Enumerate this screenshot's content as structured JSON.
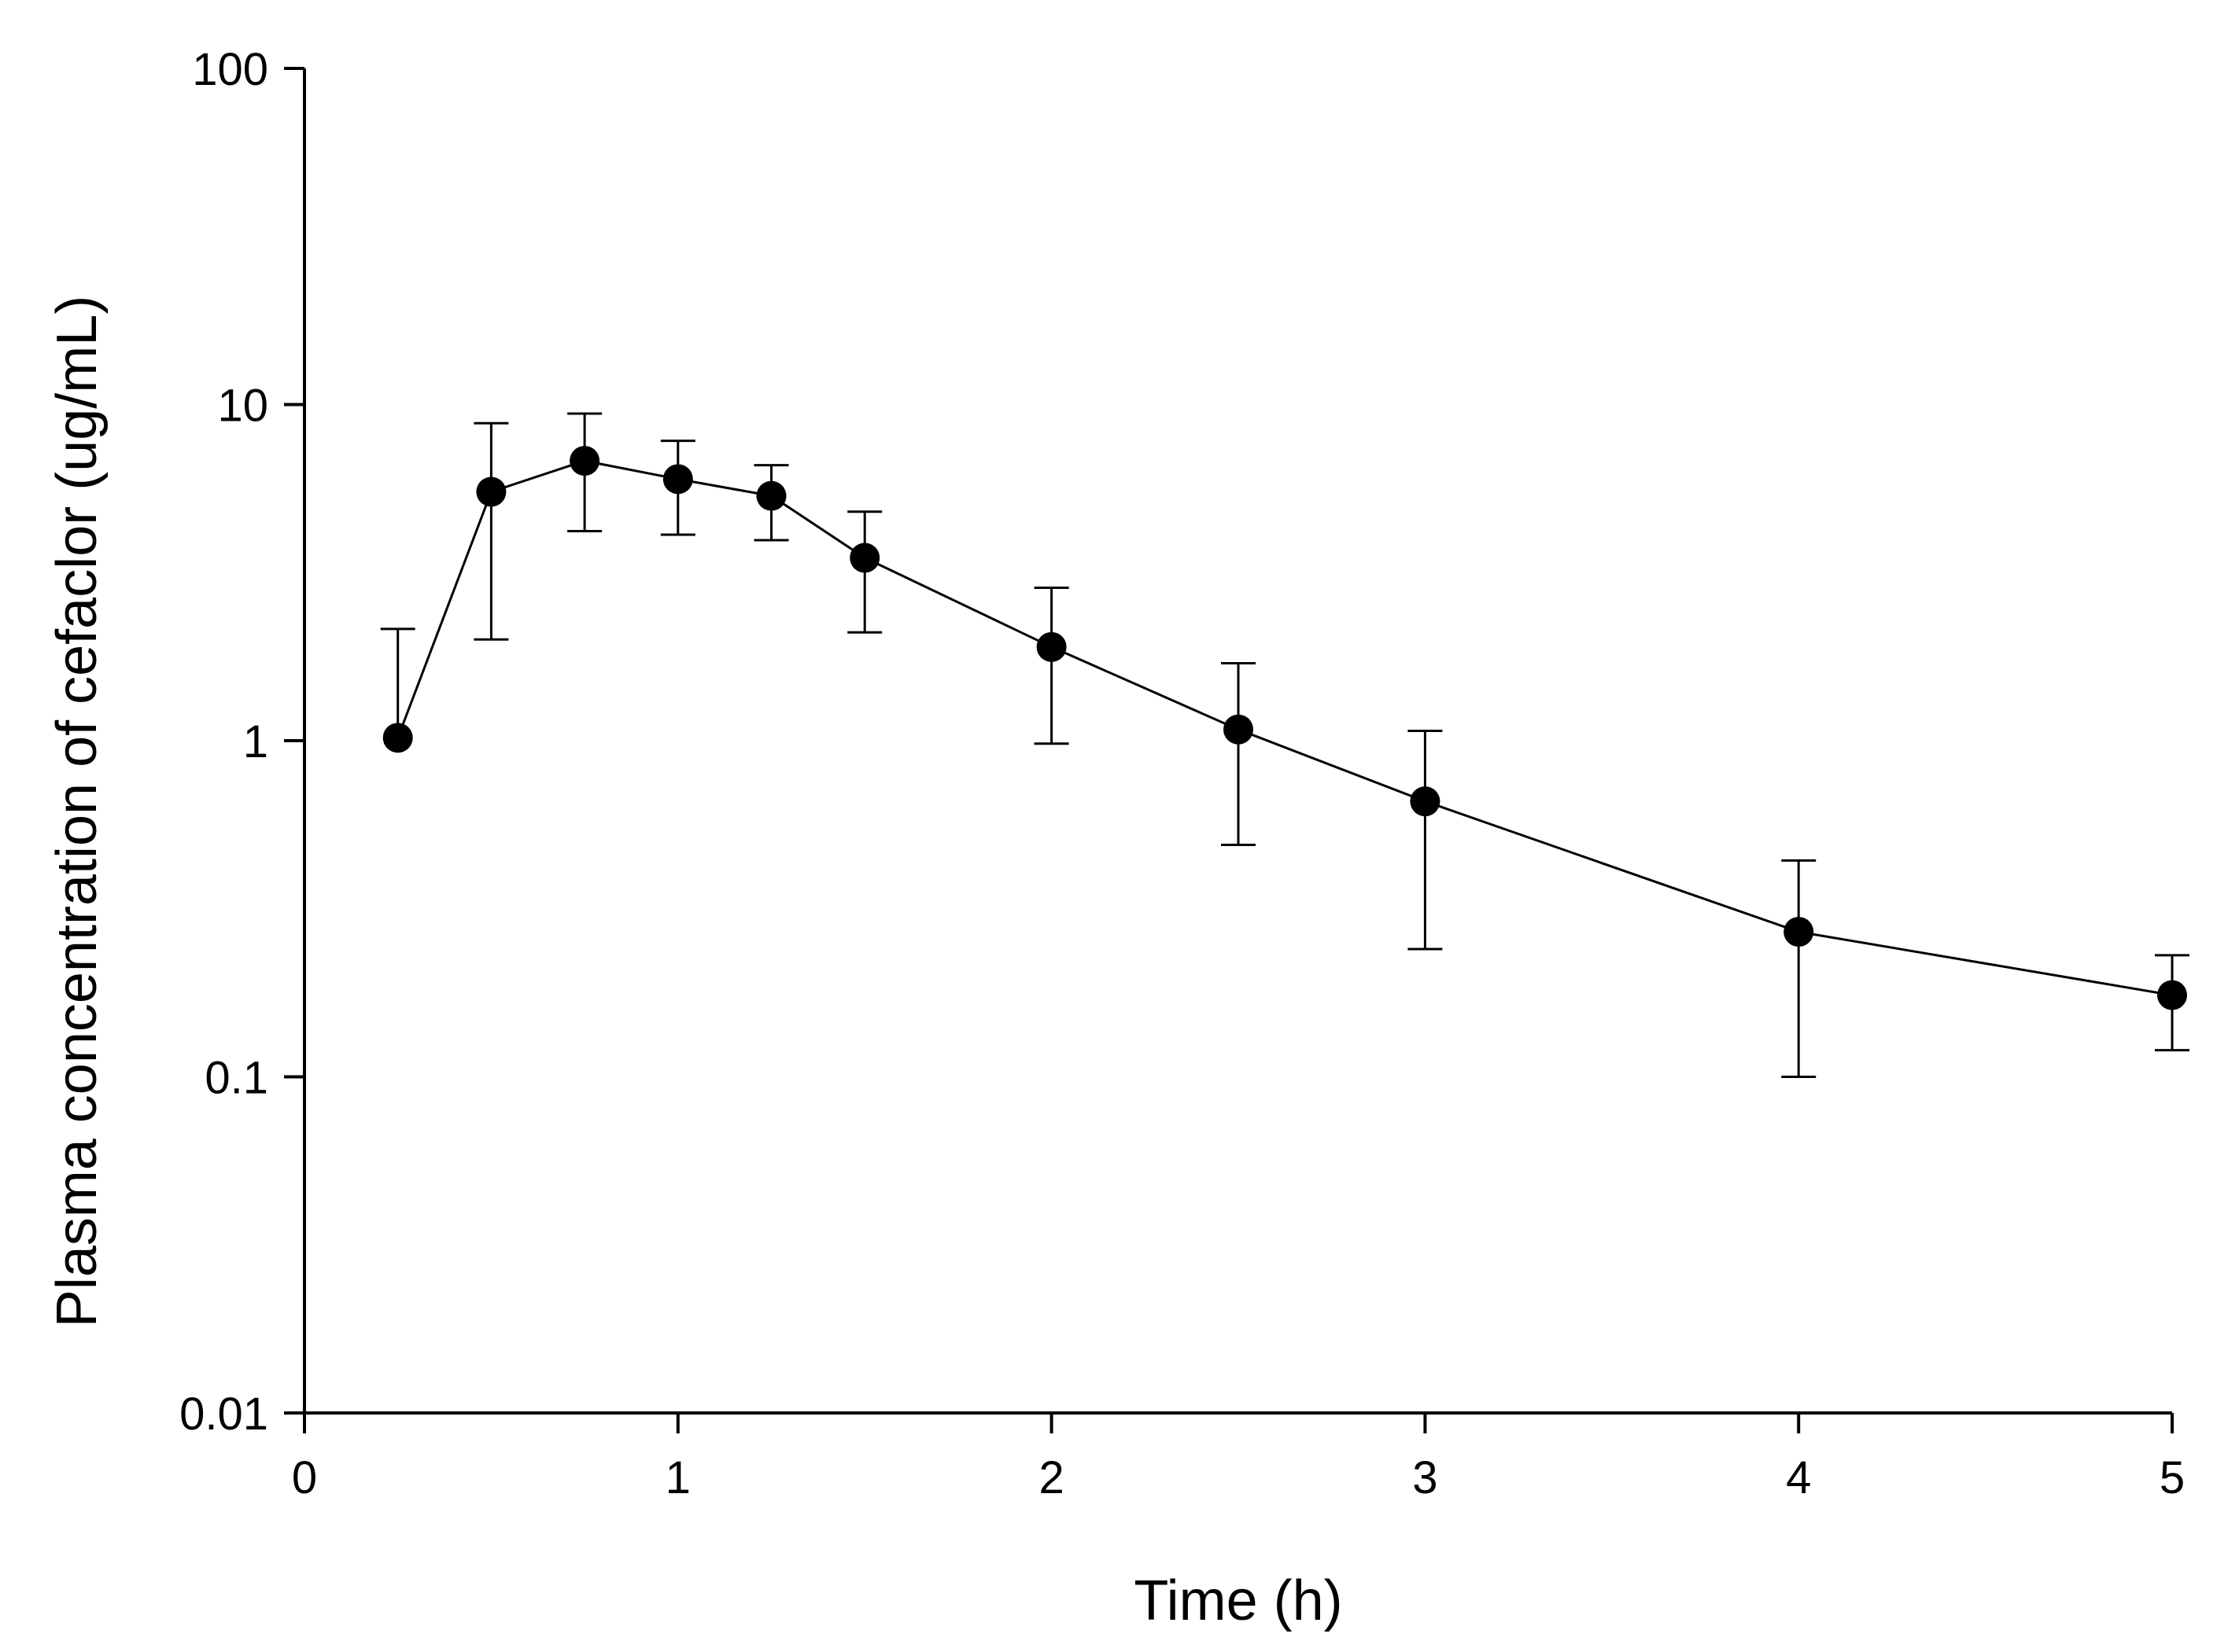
{
  "chart_data": {
    "type": "line",
    "title": "",
    "xlabel": "Time (h)",
    "ylabel": "Plasma concentration of cefaclor (ug/mL)",
    "xlim": [
      0,
      5
    ],
    "ylim": [
      0.01,
      100
    ],
    "yscale": "log",
    "x_ticks": [
      0,
      1,
      2,
      3,
      4,
      5
    ],
    "x_tick_labels": [
      "0",
      "1",
      "2",
      "3",
      "4",
      "5"
    ],
    "y_ticks": [
      0.01,
      0.1,
      1,
      10,
      100
    ],
    "y_tick_labels": [
      "0.01",
      "0.1",
      "1",
      "10",
      "100"
    ],
    "grid": false,
    "colors": {
      "series": "#000000",
      "axis": "#000000"
    },
    "series": [
      {
        "name": "cefaclor",
        "marker": "filled-circle",
        "x": [
          0.25,
          0.5,
          0.75,
          1.0,
          1.25,
          1.5,
          2.0,
          2.5,
          3.0,
          4.0,
          5.0
        ],
        "y": [
          1.02,
          5.5,
          6.8,
          6.0,
          5.35,
          3.5,
          1.9,
          1.08,
          0.66,
          0.27,
          0.175
        ],
        "err_upper": [
          2.15,
          8.8,
          9.4,
          7.8,
          6.6,
          4.8,
          2.85,
          1.7,
          1.07,
          0.44,
          0.23
        ],
        "err_lower": [
          null,
          2.0,
          4.2,
          4.1,
          3.95,
          2.1,
          0.98,
          0.49,
          0.24,
          0.1,
          0.12
        ]
      }
    ]
  }
}
